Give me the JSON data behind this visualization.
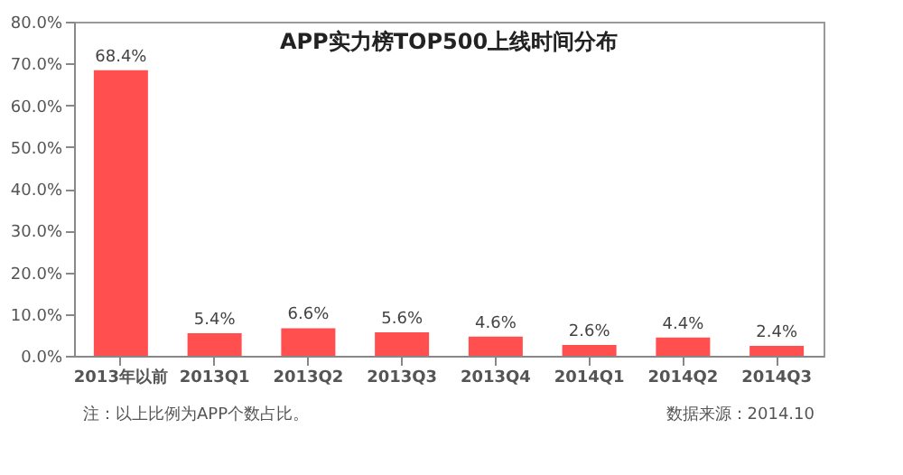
{
  "chart_data": {
    "type": "bar",
    "title": "APP实力榜TOP500上线时间分布",
    "categories": [
      "2013年以前",
      "2013Q1",
      "2013Q2",
      "2013Q3",
      "2013Q4",
      "2014Q1",
      "2014Q2",
      "2014Q3"
    ],
    "values": [
      68.4,
      5.4,
      6.6,
      5.6,
      4.6,
      2.6,
      4.4,
      2.4
    ],
    "value_labels": [
      "68.4%",
      "5.4%",
      "6.6%",
      "5.6%",
      "4.6%",
      "2.6%",
      "4.4%",
      "2.4%"
    ],
    "color": "#ff4f4f",
    "ylim": [
      0,
      80
    ],
    "yticks": [
      {
        "value": 0,
        "label": "0.0%"
      },
      {
        "value": 10,
        "label": "10.0%"
      },
      {
        "value": 20,
        "label": "20.0%"
      },
      {
        "value": 30,
        "label": "30.0%"
      },
      {
        "value": 40,
        "label": "40.0%"
      },
      {
        "value": 50,
        "label": "50.0%"
      },
      {
        "value": 60,
        "label": "60.0%"
      },
      {
        "value": 70,
        "label": "70.0%"
      },
      {
        "value": 80,
        "label": "80.0%"
      }
    ],
    "grid": false,
    "annotations": [
      "注：以上比例为APP个数占比。",
      "数据来源：2014.10"
    ]
  }
}
